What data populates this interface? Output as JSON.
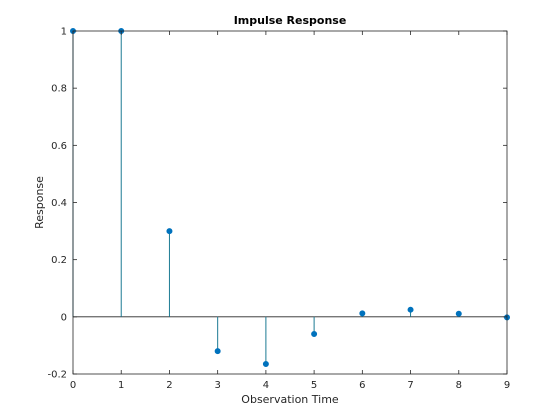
{
  "chart_data": {
    "type": "stem",
    "title": "Impulse Response",
    "xlabel": "Observation Time",
    "ylabel": "Response",
    "xlim": [
      0,
      9
    ],
    "ylim": [
      -0.2,
      1
    ],
    "xticks": [
      0,
      1,
      2,
      3,
      4,
      5,
      6,
      7,
      8,
      9
    ],
    "xtick_labels": [
      "0",
      "1",
      "2",
      "3",
      "4",
      "5",
      "6",
      "7",
      "8",
      "9"
    ],
    "yticks": [
      -0.2,
      0,
      0.2,
      0.4,
      0.6,
      0.8,
      1
    ],
    "ytick_labels": [
      "-0.2",
      "0",
      "0.2",
      "0.4",
      "0.6",
      "0.8",
      "1"
    ],
    "grid": false,
    "baseline": 0,
    "series": [
      {
        "x": [
          0,
          1,
          2,
          3,
          4,
          5,
          6,
          7,
          8,
          9
        ],
        "values": [
          1,
          1,
          0.3,
          -0.12,
          -0.165,
          -0.06,
          0.012,
          0.025,
          0.011,
          -0.002
        ],
        "color": "#0072BD"
      }
    ],
    "stem_color": "#1b7a93",
    "axes_color": "#262626"
  }
}
